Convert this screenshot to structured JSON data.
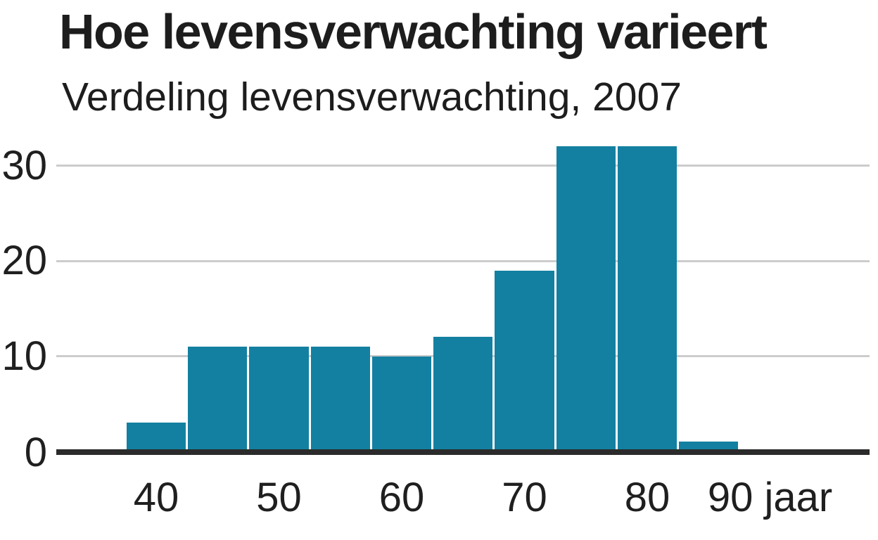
{
  "header": {
    "title": "Hoe levensverwachting varieert",
    "subtitle": "Verdeling levensverwachting, 2007"
  },
  "chart_data": {
    "type": "bar",
    "subtype": "histogram",
    "title": "Hoe levensverwachting varieert",
    "subtitle": "Verdeling levensverwachting, 2007",
    "x_unit": "jaar",
    "bin_width": 5,
    "bin_centers": [
      40,
      45,
      50,
      55,
      60,
      65,
      70,
      75,
      80,
      85
    ],
    "values": [
      3,
      11,
      11,
      11,
      10,
      12,
      19,
      32,
      32,
      1
    ],
    "x_ticks": [
      {
        "value": 40,
        "label": "40"
      },
      {
        "value": 50,
        "label": "50"
      },
      {
        "value": 60,
        "label": "60"
      },
      {
        "value": 70,
        "label": "70"
      },
      {
        "value": 80,
        "label": "80"
      },
      {
        "value": 90,
        "label": "90 jaar"
      }
    ],
    "y_ticks": [
      {
        "value": 0,
        "label": "0"
      },
      {
        "value": 10,
        "label": "10"
      },
      {
        "value": 20,
        "label": "20"
      },
      {
        "value": 30,
        "label": "30"
      }
    ],
    "xlim": [
      32,
      98
    ],
    "ylim": [
      0,
      33
    ],
    "grid": "horizontal",
    "legend": "none",
    "colors": {
      "bar": "#1380A1",
      "axis": "#2b2b2b",
      "grid": "#cccccc",
      "text": "#1f1f1f"
    }
  }
}
